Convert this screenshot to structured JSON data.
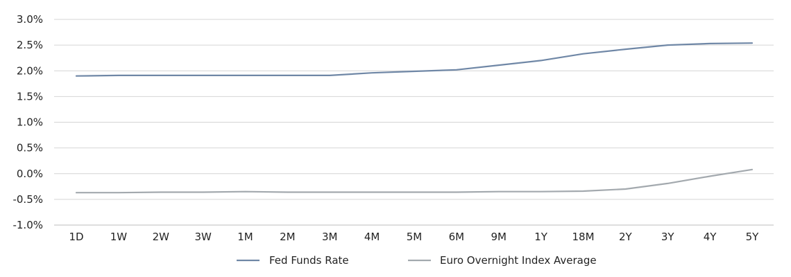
{
  "chart_data": {
    "type": "line",
    "title": "",
    "xlabel": "",
    "ylabel": "",
    "categories": [
      "1D",
      "1W",
      "2W",
      "3W",
      "1M",
      "2M",
      "3M",
      "4M",
      "5M",
      "6M",
      "9M",
      "1Y",
      "18M",
      "2Y",
      "3Y",
      "4Y",
      "5Y"
    ],
    "ylim": [
      -1.0,
      3.0
    ],
    "yticks": [
      3.0,
      2.5,
      2.0,
      1.5,
      1.0,
      0.5,
      0.0,
      -0.5,
      -1.0
    ],
    "ytick_labels": [
      "3.0%",
      "2.5%",
      "2.0%",
      "1.5%",
      "1.0%",
      "0.5%",
      "0.0%",
      "-0.5%",
      "-1.0%"
    ],
    "grid": true,
    "legend_position": "bottom",
    "series": [
      {
        "name": "Fed Funds Rate",
        "color": "#6f87a6",
        "values": [
          1.9,
          1.91,
          1.91,
          1.91,
          1.91,
          1.91,
          1.91,
          1.96,
          1.99,
          2.02,
          2.11,
          2.2,
          2.33,
          2.42,
          2.5,
          2.53,
          2.54
        ]
      },
      {
        "name": "Euro Overnight Index Average",
        "color": "#a3a9ae",
        "values": [
          -0.37,
          -0.37,
          -0.36,
          -0.36,
          -0.35,
          -0.36,
          -0.36,
          -0.36,
          -0.36,
          -0.36,
          -0.35,
          -0.35,
          -0.34,
          -0.3,
          -0.19,
          -0.05,
          0.08
        ]
      }
    ]
  }
}
